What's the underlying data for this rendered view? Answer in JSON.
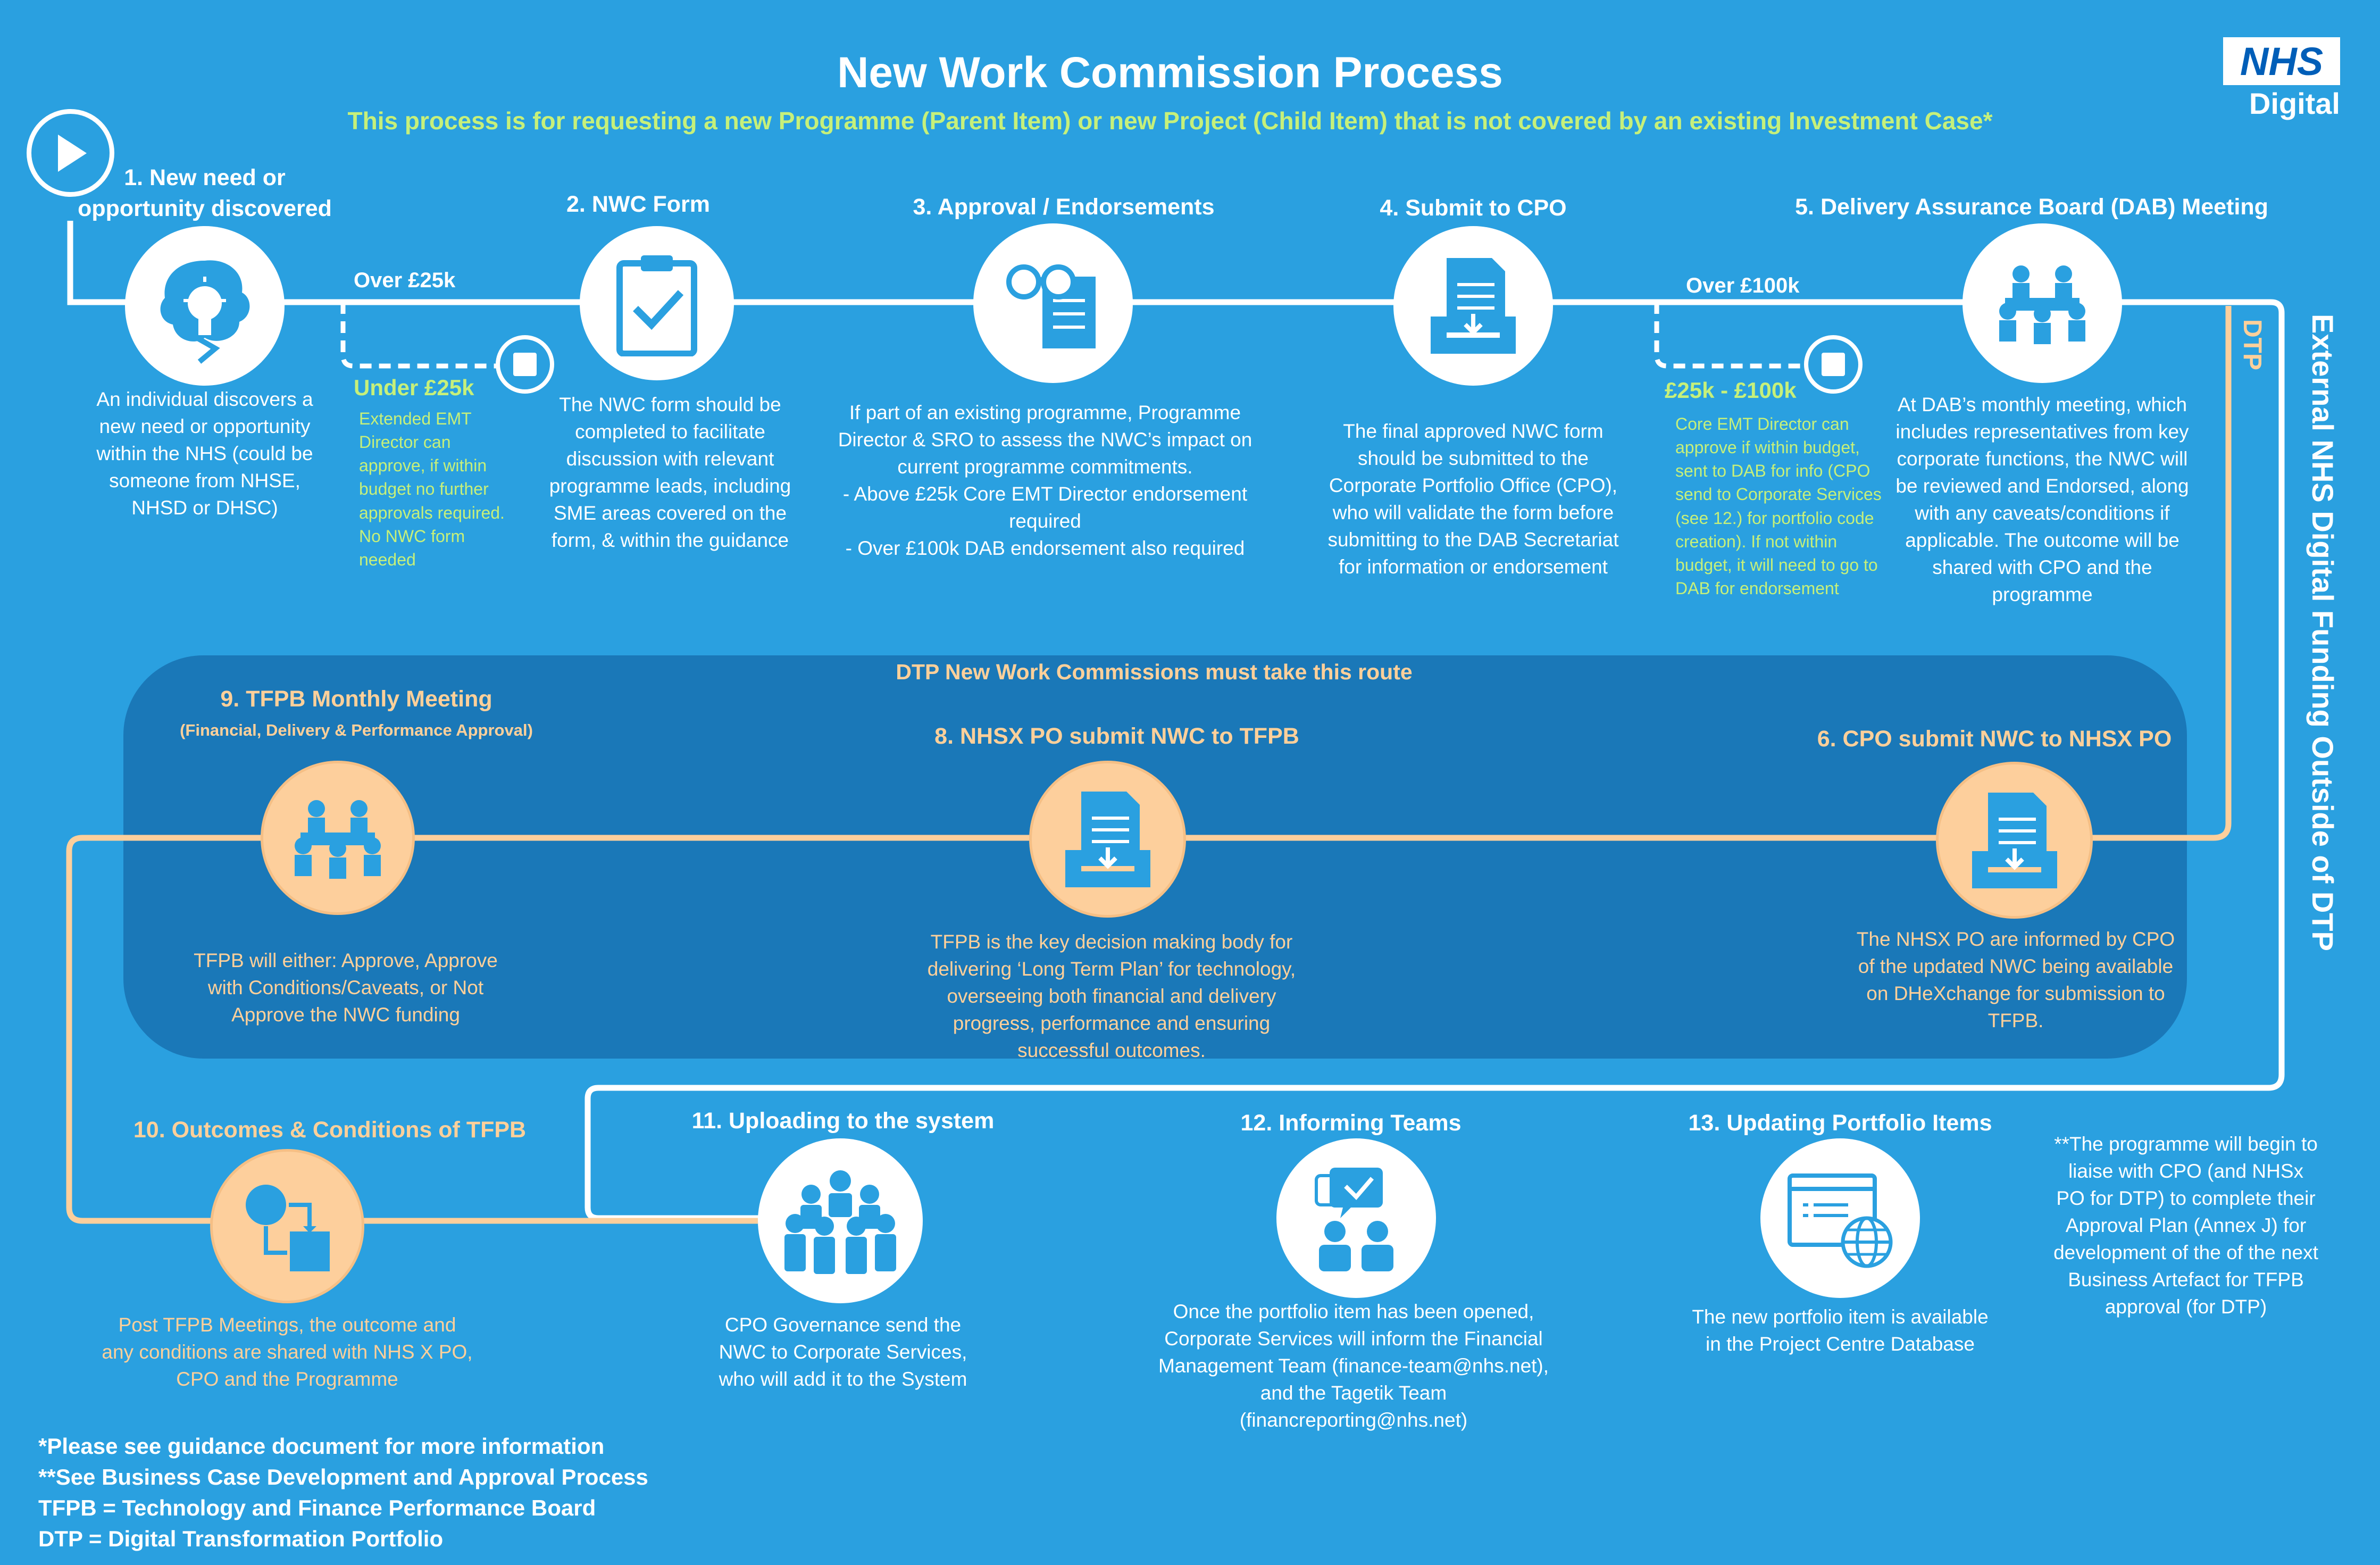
{
  "header": {
    "title": "New Work Commission Process",
    "subtitle": "This process is for requesting a new Programme (Parent Item) or new Project (Child Item) that is not covered by an existing Investment Case*",
    "logo_text": "NHS",
    "logo_sub": "Digital"
  },
  "colors": {
    "background": "#2aa0e0",
    "dtp_panel": "#1a78b8",
    "orange": "#fdcf9c",
    "green_text": "#c6f07a",
    "nhs_blue": "#005eb8"
  },
  "steps": {
    "s1": {
      "title": "1. New need or opportunity discovered",
      "desc": "An individual discovers a new need or opportunity within the NHS (could be someone from NHSE, NHSD or DHSC)",
      "icon": "lightbulb-head-icon"
    },
    "s2": {
      "title": "2. NWC Form",
      "desc": "The NWC form should be completed to facilitate discussion with relevant programme leads, including SME areas covered on the form, & within the guidance",
      "icon": "clipboard-check-icon"
    },
    "s3": {
      "title": "3. Approval / Endorsements",
      "desc": "If part of an existing programme, Programme Director & SRO to assess the NWC’s impact on current programme commitments.\n- Above £25k Core EMT Director endorsement required\n- Over £100k DAB endorsement also required",
      "icon": "glasses-document-icon"
    },
    "s4": {
      "title": "4. Submit to CPO",
      "desc": "The final approved NWC form should be submitted to the Corporate Portfolio Office (CPO), who will validate the form before submitting to the DAB Secretariat for information or endorsement",
      "icon": "document-tray-icon"
    },
    "s5": {
      "title": "5. Delivery Assurance Board (DAB) Meeting",
      "desc": "At DAB’s monthly meeting, which includes representatives from key corporate functions, the NWC will be reviewed and Endorsed, along with any caveats/conditions if applicable. The outcome will be shared with CPO and the programme",
      "icon": "meeting-icon"
    },
    "s6": {
      "title": "6. CPO submit NWC to NHSX PO",
      "desc": "The NHSX PO are informed by CPO of the updated NWC being available on DHeXchange for submission to TFPB.",
      "icon": "document-tray-icon"
    },
    "s8": {
      "title": "8. NHSX PO submit NWC to TFPB",
      "desc": "TFPB is the key decision making body for delivering ‘Long Term Plan’ for technology, overseeing both financial and delivery progress, performance and ensuring successful outcomes.",
      "icon": "document-tray-icon"
    },
    "s9": {
      "title": "9. TFPB Monthly Meeting",
      "subtitle": "(Financial, Delivery & Performance Approval)",
      "desc": "TFPB will either: Approve, Approve with Conditions/Caveats, or Not Approve the NWC funding",
      "icon": "meeting-icon"
    },
    "s10": {
      "title": "10. Outcomes & Conditions of TFPB",
      "desc": "Post TFPB Meetings, the outcome and any conditions are shared with NHS X PO, CPO and the Programme",
      "icon": "process-flow-icon"
    },
    "s11": {
      "title": "11. Uploading to the system",
      "desc": "CPO Governance send the NWC to Corporate Services, who will add it to the System",
      "icon": "people-group-icon"
    },
    "s12": {
      "title": "12. Informing Teams",
      "desc": "Once the portfolio item has been opened, Corporate Services will inform the Financial Management Team (finance-team@nhs.net), and the Tagetik Team (financreporting@nhs.net)",
      "icon": "chat-people-icon"
    },
    "s13": {
      "title": "13. Updating Portfolio Items",
      "desc": "The new portfolio item is available in the Project Centre Database",
      "icon": "browser-globe-icon"
    }
  },
  "branches": {
    "over25k": "Over £25k",
    "under25k_title": "Under £25k",
    "under25k_desc": "Extended EMT Director can approve, if within budget no further approvals required. No NWC form needed",
    "over100k": "Over £100k",
    "range_title": "£25k - £100k",
    "range_desc": "Core EMT Director can approve if within budget, sent to DAB for info (CPO send to Corporate Services (see 12.) for portfolio code creation). If not within budget, it will need to go to DAB for endorsement"
  },
  "dtp_panel": {
    "label": "DTP New Work Commissions must take this route"
  },
  "side": {
    "dtp": "DTP",
    "external": "External NHS Digital Funding Outside of DTP"
  },
  "end_note": "**The programme will begin to liaise with CPO (and NHSx PO for DTP) to complete their Approval Plan (Annex J) for development of the of the next Business Artefact for TFPB approval (for DTP)",
  "footnotes": [
    "*Please see guidance document for more information",
    "**See Business Case Development and Approval Process",
    "TFPB = Technology and Finance Performance Board",
    "DTP = Digital Transformation Portfolio"
  ]
}
